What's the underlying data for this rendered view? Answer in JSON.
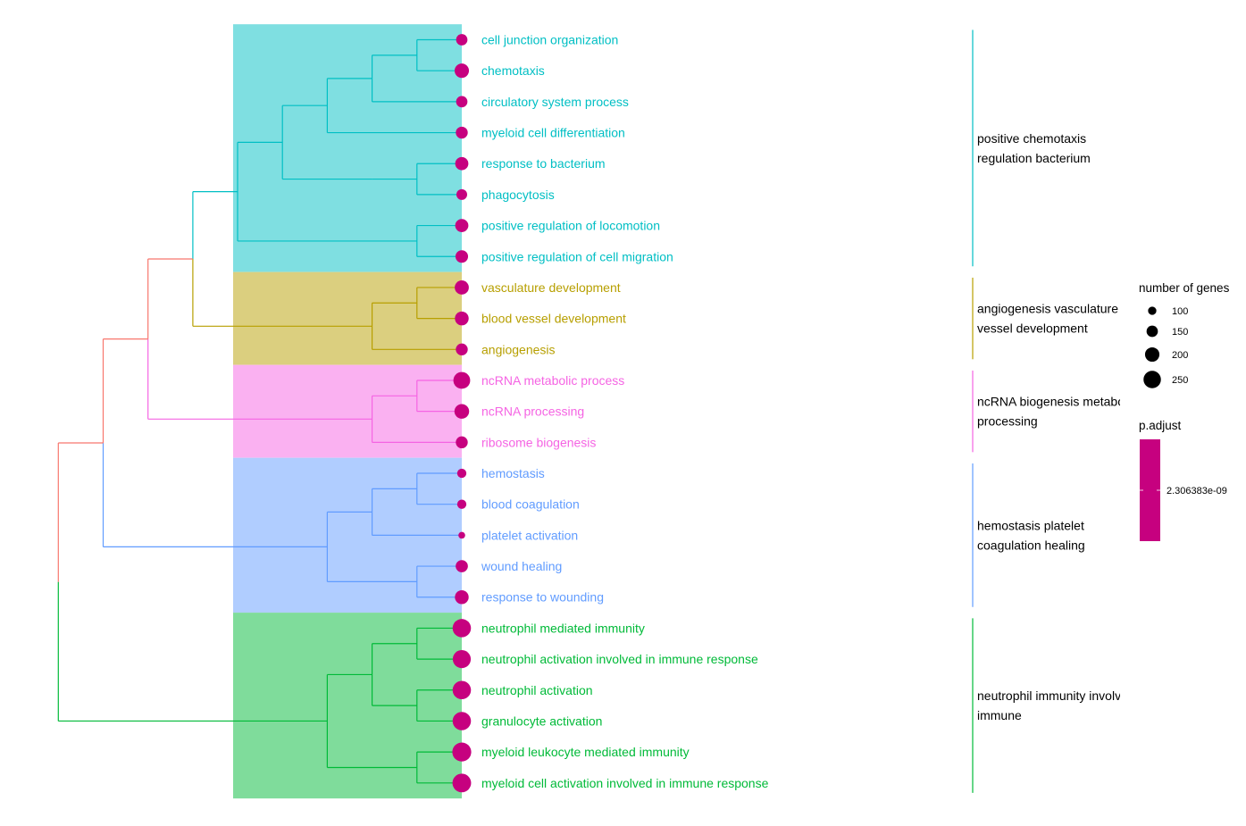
{
  "chart_data": {
    "type": "treeplot",
    "terms": [
      {
        "label": "cell junction organization",
        "cluster": 0,
        "count": 150
      },
      {
        "label": "chemotaxis",
        "cluster": 0,
        "count": 200
      },
      {
        "label": "circulatory system process",
        "cluster": 0,
        "count": 150
      },
      {
        "label": "myeloid cell differentiation",
        "cluster": 0,
        "count": 160
      },
      {
        "label": "response to bacterium",
        "cluster": 0,
        "count": 180
      },
      {
        "label": "phagocytosis",
        "cluster": 0,
        "count": 140
      },
      {
        "label": "positive regulation of locomotion",
        "cluster": 0,
        "count": 180
      },
      {
        "label": "positive regulation of cell migration",
        "cluster": 0,
        "count": 170
      },
      {
        "label": "vasculature development",
        "cluster": 1,
        "count": 195
      },
      {
        "label": "blood vessel development",
        "cluster": 1,
        "count": 190
      },
      {
        "label": "angiogenesis",
        "cluster": 1,
        "count": 160
      },
      {
        "label": "ncRNA metabolic process",
        "cluster": 2,
        "count": 240
      },
      {
        "label": "ncRNA processing",
        "cluster": 2,
        "count": 205
      },
      {
        "label": "ribosome biogenesis",
        "cluster": 2,
        "count": 160
      },
      {
        "label": "hemostasis",
        "cluster": 3,
        "count": 115
      },
      {
        "label": "blood coagulation",
        "cluster": 3,
        "count": 115
      },
      {
        "label": "platelet activation",
        "cluster": 3,
        "count": 75
      },
      {
        "label": "wound healing",
        "cluster": 3,
        "count": 165
      },
      {
        "label": "response to wounding",
        "cluster": 3,
        "count": 190
      },
      {
        "label": "neutrophil mediated immunity",
        "cluster": 4,
        "count": 265
      },
      {
        "label": "neutrophil activation involved in immune response",
        "cluster": 4,
        "count": 260
      },
      {
        "label": "neutrophil activation",
        "cluster": 4,
        "count": 265
      },
      {
        "label": "granulocyte activation",
        "cluster": 4,
        "count": 265
      },
      {
        "label": "myeloid leukocyte mediated immunity",
        "cluster": 4,
        "count": 275
      },
      {
        "label": "myeloid cell activation involved in immune response",
        "cluster": 4,
        "count": 270
      }
    ],
    "clusters": [
      {
        "lines": [
          "positive chemotaxis",
          "regulation bacterium"
        ],
        "color": "#00BFC4",
        "fill": "#7FDFE1"
      },
      {
        "lines": [
          "angiogenesis vasculature",
          "vessel development"
        ],
        "color": "#B79F00",
        "fill": "#DBCF7F"
      },
      {
        "lines": [
          "ncRNA biogenesis metabolic",
          "processing"
        ],
        "color": "#F564E3",
        "fill": "#FAB1F1"
      },
      {
        "lines": [
          "hemostasis platelet",
          "coagulation healing"
        ],
        "color": "#619CFF",
        "fill": "#B0CDFF"
      },
      {
        "lines": [
          "neutrophil immunity involved",
          "immune"
        ],
        "color": "#00BA38",
        "fill": "#7FDC9B"
      }
    ],
    "tree": [
      [
        [
          [
            [
              [
                0,
                1
              ],
              2
            ],
            3
          ],
          [
            [
              4,
              5
            ]
          ]
        ],
        [
          6,
          7
        ]
      ],
      [
        [
          8,
          9
        ],
        10
      ],
      [
        [
          11,
          12
        ],
        13
      ],
      [
        [
          [
            14,
            15
          ],
          16
        ],
        [
          17,
          18
        ]
      ],
      [
        [
          [
            19,
            20
          ],
          [
            21,
            22
          ]
        ],
        [
          23,
          24
        ]
      ]
    ],
    "root_color": "#F8766D",
    "dot_color": "#C6017F",
    "legend_size": {
      "title": "number of genes",
      "values": [
        100,
        150,
        200,
        250
      ],
      "labels": [
        "100",
        "150",
        "200",
        "250"
      ]
    },
    "legend_color": {
      "title": "p.adjust",
      "labels": [
        "2.306383e-09"
      ],
      "color": "#C6017F"
    }
  }
}
